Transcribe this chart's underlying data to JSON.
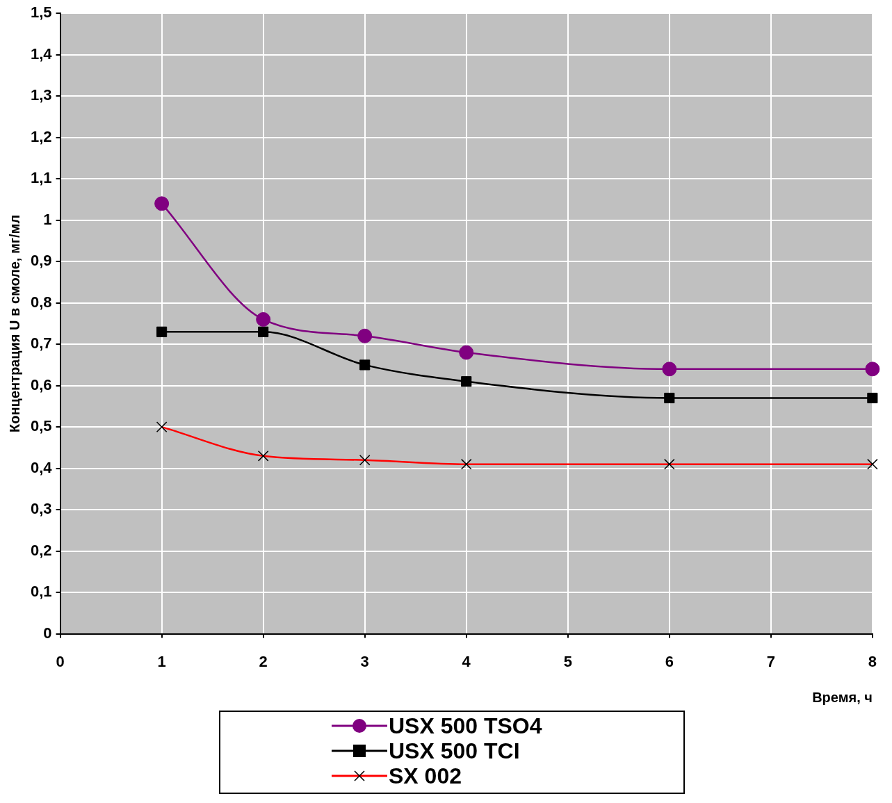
{
  "chart_data": {
    "type": "line",
    "xlabel": "Время, ч",
    "ylabel": "Концентрация U в смоле, мг/мл",
    "x": [
      1,
      2,
      3,
      4,
      6,
      8
    ],
    "series": [
      {
        "name": "USX 500 TSO4",
        "color": "#800080",
        "marker": "circle",
        "values": [
          1.04,
          0.76,
          0.72,
          0.68,
          0.64,
          0.64
        ]
      },
      {
        "name": "USX 500 TCI",
        "color": "#000000",
        "marker": "square",
        "values": [
          0.73,
          0.73,
          0.65,
          0.61,
          0.57,
          0.57
        ]
      },
      {
        "name": "SX 002",
        "color": "#ff0000",
        "marker": "cross",
        "values": [
          0.5,
          0.43,
          0.42,
          0.41,
          0.41,
          0.41
        ]
      }
    ],
    "xlim": [
      0,
      8
    ],
    "xticks": [
      0,
      1,
      2,
      3,
      4,
      5,
      6,
      7,
      8
    ],
    "ylim": [
      0,
      1.5
    ],
    "yticks": [
      0,
      {
        "value": 0.1,
        "label": "0,1"
      },
      {
        "value": 0.2,
        "label": "0,2"
      },
      {
        "value": 0.3,
        "label": "0,3"
      },
      {
        "value": 0.4,
        "label": "0,4"
      },
      {
        "value": 0.5,
        "label": "0,5"
      },
      {
        "value": 0.6,
        "label": "0,6"
      },
      {
        "value": 0.7,
        "label": "0,7"
      },
      {
        "value": 0.8,
        "label": "0,8"
      },
      {
        "value": 0.9,
        "label": "0,9"
      },
      1,
      {
        "value": 1.1,
        "label": "1,1"
      },
      {
        "value": 1.2,
        "label": "1,2"
      },
      {
        "value": 1.3,
        "label": "1,3"
      },
      {
        "value": 1.4,
        "label": "1,4"
      },
      {
        "value": 1.5,
        "label": "1,5"
      }
    ],
    "grid": true,
    "legend": "bottom",
    "line_style": "solid"
  }
}
